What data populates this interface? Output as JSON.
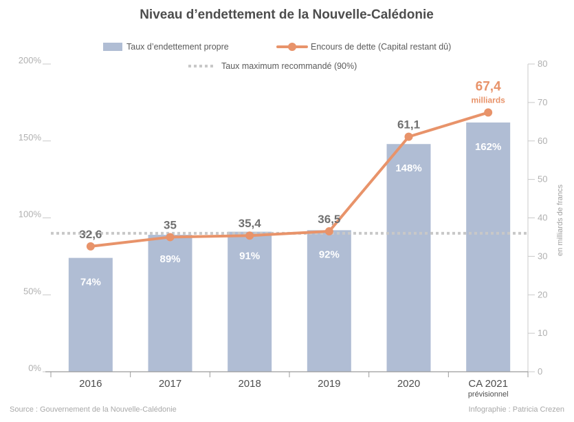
{
  "chart_data": {
    "type": "bar",
    "title": "Niveau d’endettement de la Nouvelle-Calédonie",
    "categories": [
      "2016",
      "2017",
      "2018",
      "2019",
      "2020",
      "CA 2021"
    ],
    "category_sublabels": [
      "",
      "",
      "",
      "",
      "",
      "prévisionnel"
    ],
    "series": [
      {
        "name": "Taux d’endettement propre",
        "type": "bar",
        "axis": "left",
        "values": [
          74,
          89,
          91,
          92,
          148,
          162
        ],
        "labels": [
          "74%",
          "89%",
          "91%",
          "92%",
          "148%",
          "162%"
        ],
        "color": "#b0bdd4"
      },
      {
        "name": "Encours de dette (Capital restant dû)",
        "type": "line",
        "axis": "right",
        "values": [
          32.6,
          35,
          35.4,
          36.5,
          61.1,
          67.4
        ],
        "labels": [
          "32,6",
          "35",
          "35,4",
          "36,5",
          "61,1",
          "67,4"
        ],
        "last_label_unit": "milliards",
        "color": "#e8936a"
      }
    ],
    "reference_line": {
      "name": "Taux maximum recommandé (90%)",
      "value": 90,
      "axis": "left",
      "style": "dotted",
      "color": "#c8c8c8"
    },
    "left_axis": {
      "ylim": [
        0,
        200
      ],
      "ticks": [
        0,
        50,
        100,
        150,
        200
      ],
      "tick_labels": [
        "0%",
        "50%",
        "100%",
        "150%",
        "200%"
      ]
    },
    "right_axis": {
      "ylabel": "en milliards de francs",
      "ylim": [
        0,
        80
      ],
      "ticks": [
        0,
        10,
        20,
        30,
        40,
        50,
        60,
        70,
        80
      ],
      "tick_labels": [
        "0",
        "10",
        "20",
        "30",
        "40",
        "50",
        "60",
        "70",
        "80"
      ]
    },
    "grid": false,
    "legend_position": "top-center"
  },
  "footer": {
    "source": "Source : Gouvernement de la Nouvelle-Calédonie",
    "credit": "Infographie : Patricia Crezen"
  }
}
